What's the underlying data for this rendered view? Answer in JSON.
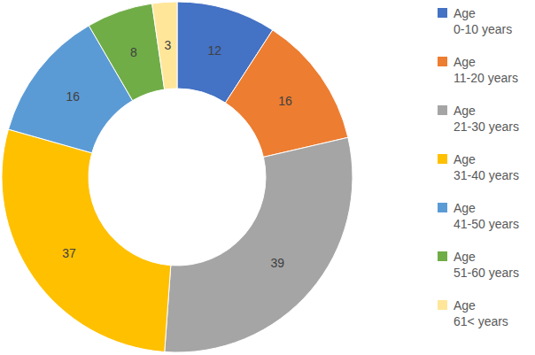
{
  "chart_data": {
    "type": "pie",
    "categories": [
      "Age 0-10 years",
      "Age 11-20 years",
      "Age 21-30 years",
      "Age 31-40 years",
      "Age 41-50 years",
      "Age 51-60 years",
      "Age 61< years"
    ],
    "values": [
      12,
      16,
      39,
      37,
      16,
      8,
      3
    ],
    "colors": [
      "#4472c4",
      "#ed7d31",
      "#a5a5a5",
      "#ffc000",
      "#5b9bd5",
      "#70ad47",
      "#ffe699"
    ],
    "data_labels": true,
    "legend": "right"
  }
}
